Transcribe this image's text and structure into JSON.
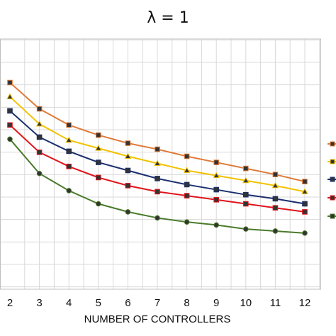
{
  "chart_data": {
    "type": "line",
    "title": "λ = 1",
    "xlabel": "NUMBER OF CONTROLLERS",
    "ylabel": "",
    "x": [
      2,
      3,
      4,
      5,
      6,
      7,
      8,
      9,
      10,
      11,
      12
    ],
    "xlim": [
      2,
      12
    ],
    "ylim": [
      0,
      10
    ],
    "grid": true,
    "legend": "right",
    "series": [
      {
        "color": "#e07b39",
        "marker": "square",
        "values": [
          9.0,
          7.7,
          6.9,
          6.4,
          6.0,
          5.7,
          5.35,
          5.05,
          4.75,
          4.45,
          4.1
        ]
      },
      {
        "color": "#f2c200",
        "marker": "triangle",
        "values": [
          8.3,
          6.95,
          6.15,
          5.75,
          5.35,
          5.0,
          4.65,
          4.4,
          4.15,
          3.9,
          3.6
        ]
      },
      {
        "color": "#1b2f6e",
        "marker": "square",
        "values": [
          7.6,
          6.3,
          5.6,
          5.05,
          4.65,
          4.25,
          3.95,
          3.7,
          3.45,
          3.25,
          3.0
        ]
      },
      {
        "color": "#e0141a",
        "marker": "square",
        "values": [
          6.9,
          5.55,
          4.85,
          4.3,
          3.9,
          3.6,
          3.4,
          3.2,
          3.0,
          2.8,
          2.6
        ]
      },
      {
        "color": "#4a7a2a",
        "marker": "circle",
        "values": [
          6.2,
          4.5,
          3.65,
          3.0,
          2.6,
          2.3,
          2.1,
          1.95,
          1.75,
          1.65,
          1.55
        ]
      }
    ]
  }
}
